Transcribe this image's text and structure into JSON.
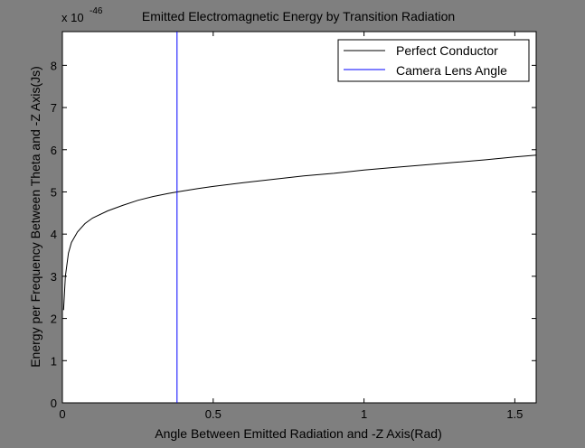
{
  "chart_data": {
    "type": "line",
    "title": "Emitted Electromagnetic Energy by Transition Radiation",
    "xlabel": "Angle Between Emitted Radiation and -Z Axis(Rad)",
    "ylabel": "Energy per Frequency Between Theta and -Z Axis(Js)",
    "exponent_base": "x 10",
    "exponent_power": "-46",
    "xlim": [
      0,
      1.5708
    ],
    "ylim": [
      0,
      8.8
    ],
    "xticks": [
      0,
      0.5,
      1,
      1.5
    ],
    "xtick_labels": [
      "0",
      "0.5",
      "1",
      "1.5"
    ],
    "yticks": [
      0,
      1,
      2,
      3,
      4,
      5,
      6,
      7,
      8
    ],
    "ytick_labels": [
      "0",
      "1",
      "2",
      "3",
      "4",
      "5",
      "6",
      "7",
      "8"
    ],
    "grid": false,
    "legend_position": "top-right",
    "series": [
      {
        "name": "Perfect Conductor",
        "color": "#000000",
        "x": [
          0.004,
          0.01,
          0.02,
          0.03,
          0.05,
          0.075,
          0.1,
          0.15,
          0.2,
          0.25,
          0.3,
          0.35,
          0.38,
          0.45,
          0.5,
          0.6,
          0.7,
          0.8,
          0.9,
          1.0,
          1.1,
          1.2,
          1.3,
          1.4,
          1.5,
          1.5708
        ],
        "y": [
          2.2,
          3.0,
          3.55,
          3.8,
          4.05,
          4.25,
          4.38,
          4.55,
          4.68,
          4.8,
          4.89,
          4.96,
          5.0,
          5.08,
          5.13,
          5.22,
          5.3,
          5.38,
          5.44,
          5.52,
          5.58,
          5.64,
          5.7,
          5.76,
          5.83,
          5.87
        ]
      },
      {
        "name": "Camera Lens Angle",
        "color": "#0000ff",
        "x": [
          0.38,
          0.38
        ],
        "y": [
          0,
          8.8
        ]
      }
    ]
  }
}
